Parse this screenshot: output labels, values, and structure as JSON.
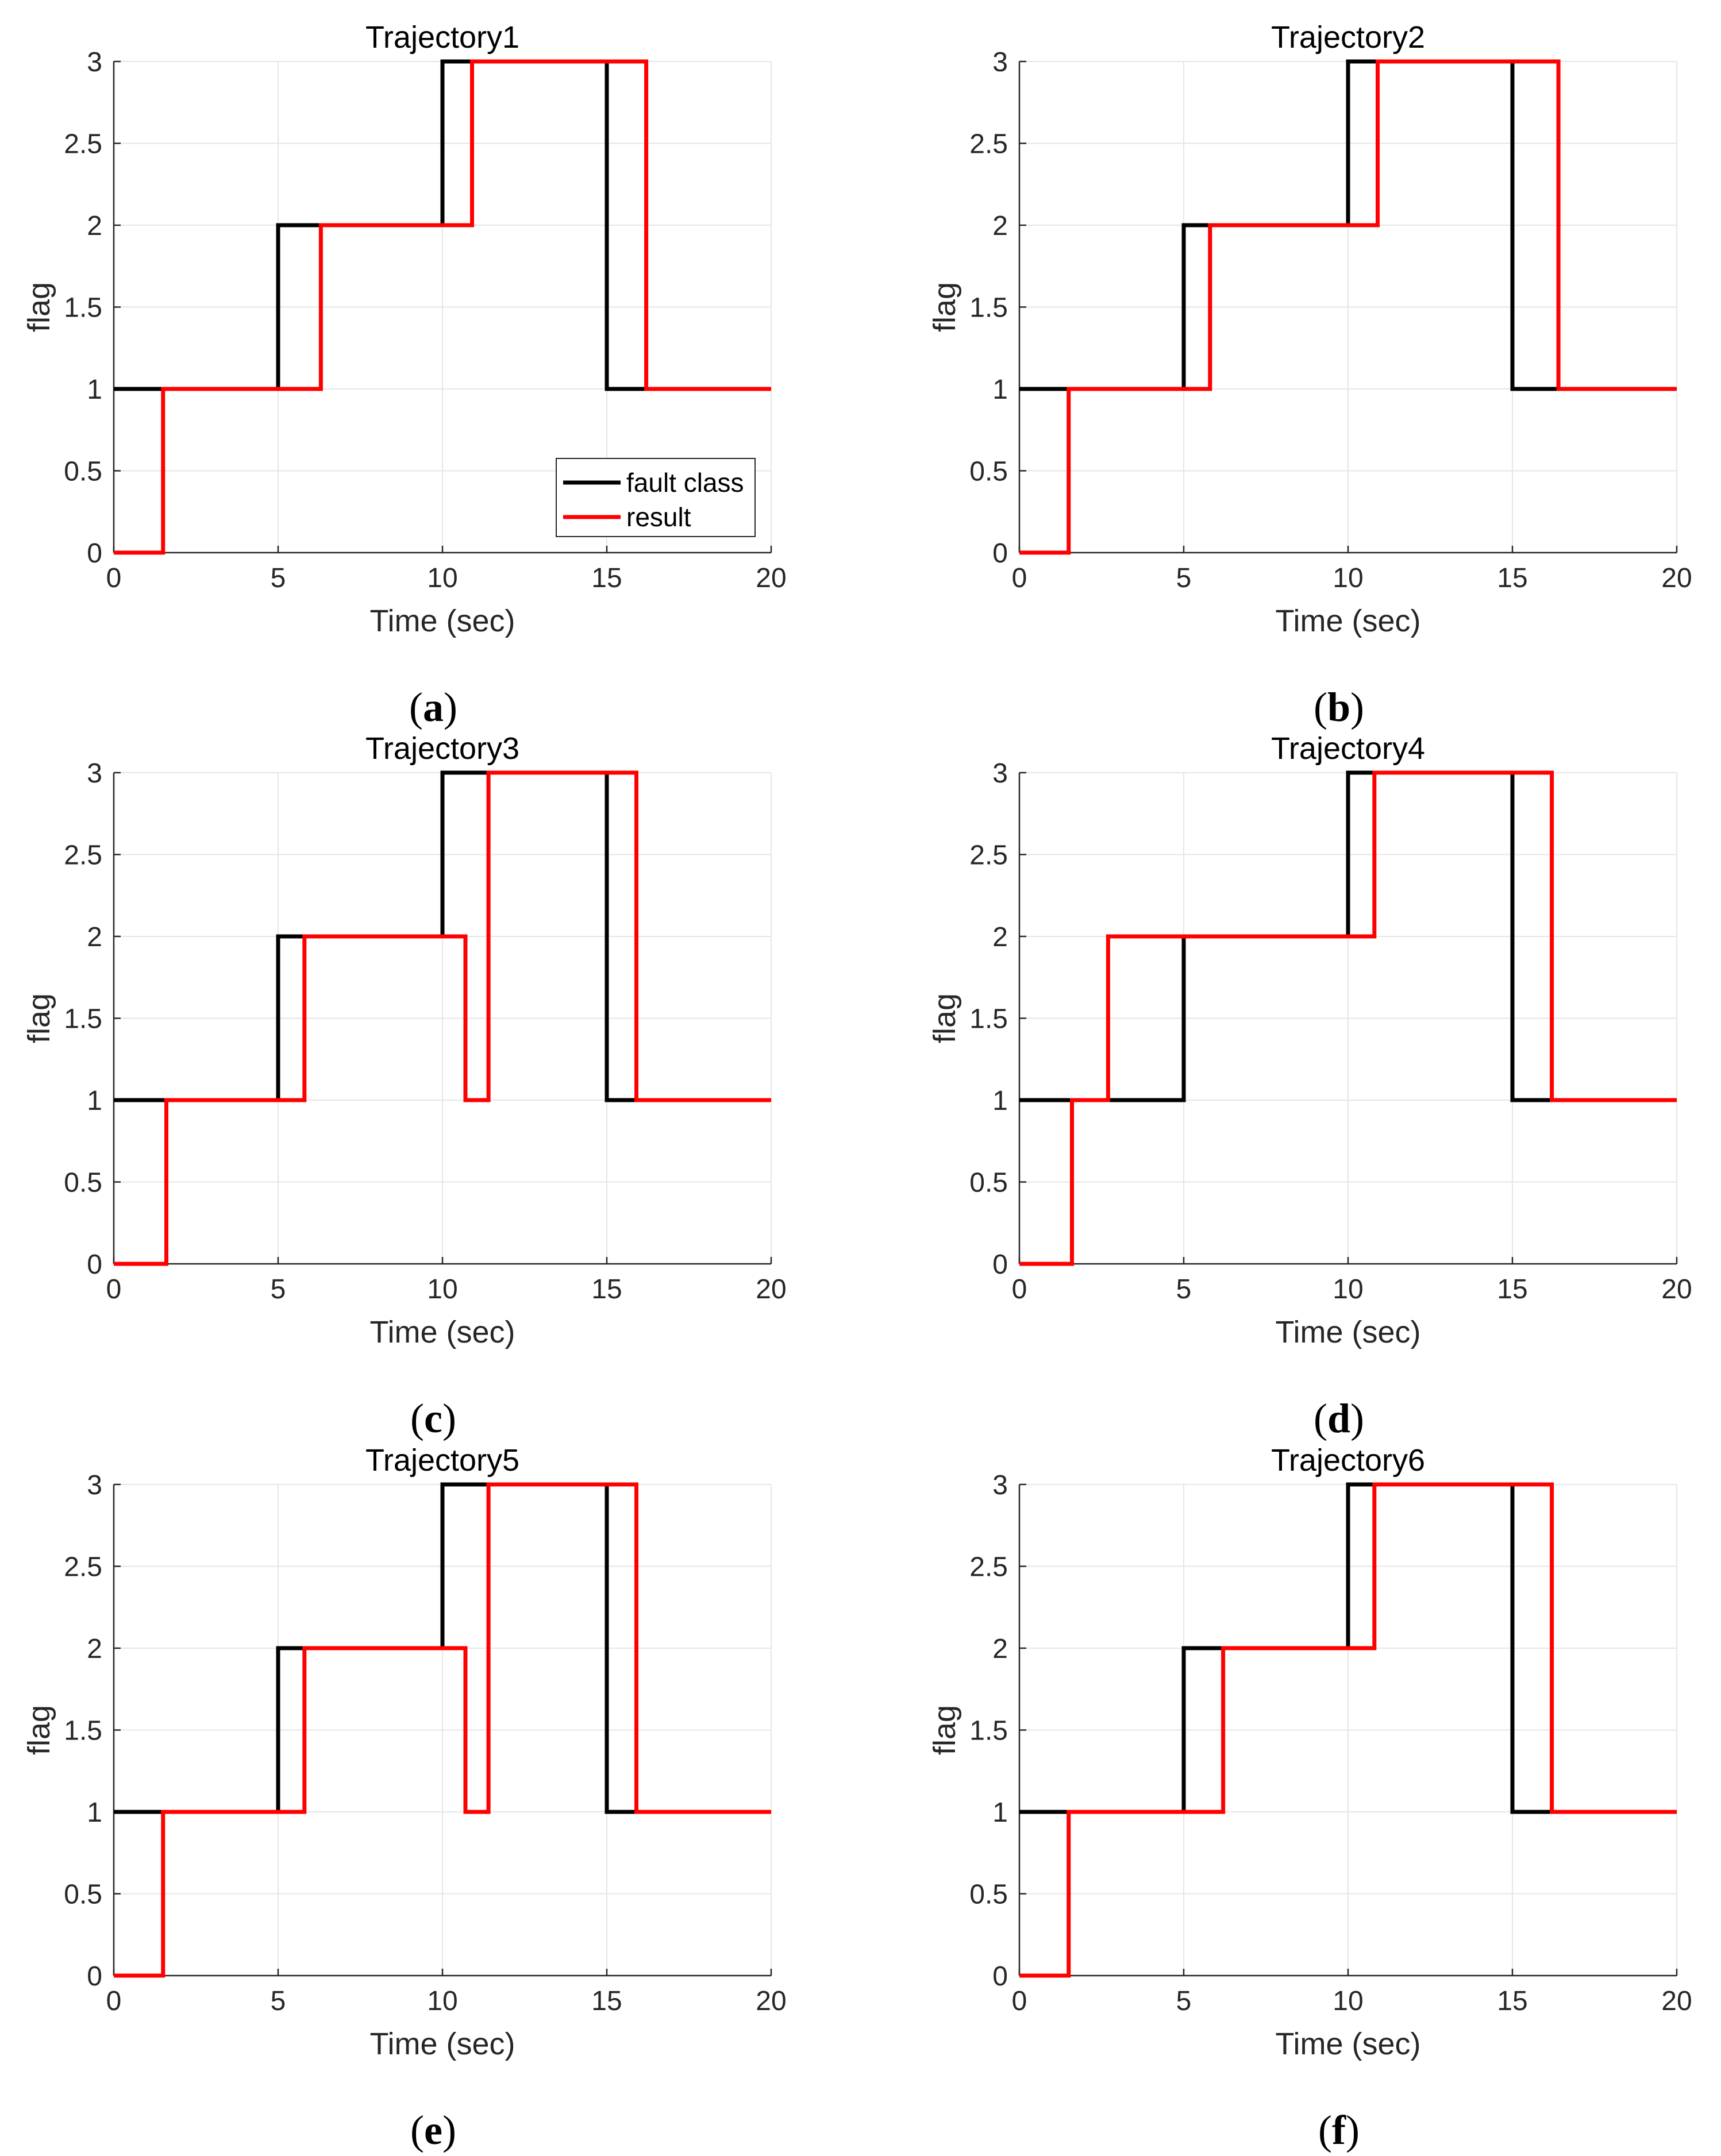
{
  "figure": {
    "panel_labels": [
      "(a)",
      "(b)",
      "(c)",
      "(d)",
      "(e)",
      "(f)"
    ]
  },
  "colors": {
    "fault_class": "#000000",
    "result": "#ff0000",
    "grid": "#e6e6e6",
    "axis": "#262626"
  },
  "chart_data": [
    {
      "type": "line",
      "title": "Trajectory1",
      "panel_label": "(a)",
      "xlabel": "Time (sec)",
      "ylabel": "flag",
      "xlim": [
        0,
        20
      ],
      "ylim": [
        0,
        3
      ],
      "xticks": [
        0,
        5,
        10,
        15,
        20
      ],
      "yticks": [
        0,
        0.5,
        1,
        1.5,
        2,
        2.5,
        3
      ],
      "grid": true,
      "legend": {
        "show": true,
        "location": "bottom-right"
      },
      "series": [
        {
          "name": "fault class",
          "color": "#000000",
          "x": [
            0,
            5,
            5,
            10,
            10,
            15,
            15,
            20
          ],
          "y": [
            1,
            1,
            2,
            2,
            3,
            3,
            1,
            1
          ]
        },
        {
          "name": "result",
          "color": "#ff0000",
          "x": [
            0,
            1.5,
            1.5,
            6.3,
            6.3,
            10.9,
            10.9,
            16.2,
            16.2,
            20
          ],
          "y": [
            0,
            0,
            1,
            1,
            2,
            2,
            3,
            3,
            1,
            1
          ]
        }
      ]
    },
    {
      "type": "line",
      "title": "Trajectory2",
      "panel_label": "(b)",
      "xlabel": "Time (sec)",
      "ylabel": "flag",
      "xlim": [
        0,
        20
      ],
      "ylim": [
        0,
        3
      ],
      "xticks": [
        0,
        5,
        10,
        15,
        20
      ],
      "yticks": [
        0,
        0.5,
        1,
        1.5,
        2,
        2.5,
        3
      ],
      "grid": true,
      "legend": {
        "show": false
      },
      "series": [
        {
          "name": "fault class",
          "color": "#000000",
          "x": [
            0,
            5,
            5,
            10,
            10,
            15,
            15,
            20
          ],
          "y": [
            1,
            1,
            2,
            2,
            3,
            3,
            1,
            1
          ]
        },
        {
          "name": "result",
          "color": "#ff0000",
          "x": [
            0,
            1.5,
            1.5,
            5.8,
            5.8,
            10.9,
            10.9,
            16.4,
            16.4,
            20
          ],
          "y": [
            0,
            0,
            1,
            1,
            2,
            2,
            3,
            3,
            1,
            1
          ]
        }
      ]
    },
    {
      "type": "line",
      "title": "Trajectory3",
      "panel_label": "(c)",
      "xlabel": "Time (sec)",
      "ylabel": "flag",
      "xlim": [
        0,
        20
      ],
      "ylim": [
        0,
        3
      ],
      "xticks": [
        0,
        5,
        10,
        15,
        20
      ],
      "yticks": [
        0,
        0.5,
        1,
        1.5,
        2,
        2.5,
        3
      ],
      "grid": true,
      "legend": {
        "show": false
      },
      "series": [
        {
          "name": "fault class",
          "color": "#000000",
          "x": [
            0,
            5,
            5,
            10,
            10,
            15,
            15,
            20
          ],
          "y": [
            1,
            1,
            2,
            2,
            3,
            3,
            1,
            1
          ]
        },
        {
          "name": "result",
          "color": "#ff0000",
          "x": [
            0,
            1.6,
            1.6,
            5.8,
            5.8,
            10.7,
            10.7,
            11.4,
            11.4,
            15.9,
            15.9,
            20
          ],
          "y": [
            0,
            0,
            1,
            1,
            2,
            2,
            1,
            1,
            3,
            3,
            1,
            1
          ]
        }
      ]
    },
    {
      "type": "line",
      "title": "Trajectory4",
      "panel_label": "(d)",
      "xlabel": "Time (sec)",
      "ylabel": "flag",
      "xlim": [
        0,
        20
      ],
      "ylim": [
        0,
        3
      ],
      "xticks": [
        0,
        5,
        10,
        15,
        20
      ],
      "yticks": [
        0,
        0.5,
        1,
        1.5,
        2,
        2.5,
        3
      ],
      "grid": true,
      "legend": {
        "show": false
      },
      "series": [
        {
          "name": "fault class",
          "color": "#000000",
          "x": [
            0,
            5,
            5,
            10,
            10,
            15,
            15,
            20
          ],
          "y": [
            1,
            1,
            2,
            2,
            3,
            3,
            1,
            1
          ]
        },
        {
          "name": "result",
          "color": "#ff0000",
          "x": [
            0,
            1.6,
            1.6,
            2.7,
            2.7,
            10.8,
            10.8,
            16.2,
            16.2,
            20
          ],
          "y": [
            0,
            0,
            1,
            1,
            2,
            2,
            3,
            3,
            1,
            1
          ]
        }
      ]
    },
    {
      "type": "line",
      "title": "Trajectory5",
      "panel_label": "(e)",
      "xlabel": "Time (sec)",
      "ylabel": "flag",
      "xlim": [
        0,
        20
      ],
      "ylim": [
        0,
        3
      ],
      "xticks": [
        0,
        5,
        10,
        15,
        20
      ],
      "yticks": [
        0,
        0.5,
        1,
        1.5,
        2,
        2.5,
        3
      ],
      "grid": true,
      "legend": {
        "show": false
      },
      "series": [
        {
          "name": "fault class",
          "color": "#000000",
          "x": [
            0,
            5,
            5,
            10,
            10,
            15,
            15,
            20
          ],
          "y": [
            1,
            1,
            2,
            2,
            3,
            3,
            1,
            1
          ]
        },
        {
          "name": "result",
          "color": "#ff0000",
          "x": [
            0,
            1.5,
            1.5,
            5.8,
            5.8,
            10.7,
            10.7,
            11.4,
            11.4,
            15.9,
            15.9,
            20
          ],
          "y": [
            0,
            0,
            1,
            1,
            2,
            2,
            1,
            1,
            3,
            3,
            1,
            1
          ]
        }
      ]
    },
    {
      "type": "line",
      "title": "Trajectory6",
      "panel_label": "(f)",
      "xlabel": "Time (sec)",
      "ylabel": "flag",
      "xlim": [
        0,
        20
      ],
      "ylim": [
        0,
        3
      ],
      "xticks": [
        0,
        5,
        10,
        15,
        20
      ],
      "yticks": [
        0,
        0.5,
        1,
        1.5,
        2,
        2.5,
        3
      ],
      "grid": true,
      "legend": {
        "show": false
      },
      "series": [
        {
          "name": "fault class",
          "color": "#000000",
          "x": [
            0,
            5,
            5,
            10,
            10,
            15,
            15,
            20
          ],
          "y": [
            1,
            1,
            2,
            2,
            3,
            3,
            1,
            1
          ]
        },
        {
          "name": "result",
          "color": "#ff0000",
          "x": [
            0,
            1.5,
            1.5,
            6.2,
            6.2,
            10.8,
            10.8,
            16.2,
            16.2,
            20
          ],
          "y": [
            0,
            0,
            1,
            1,
            2,
            2,
            3,
            3,
            1,
            1
          ]
        }
      ]
    }
  ]
}
